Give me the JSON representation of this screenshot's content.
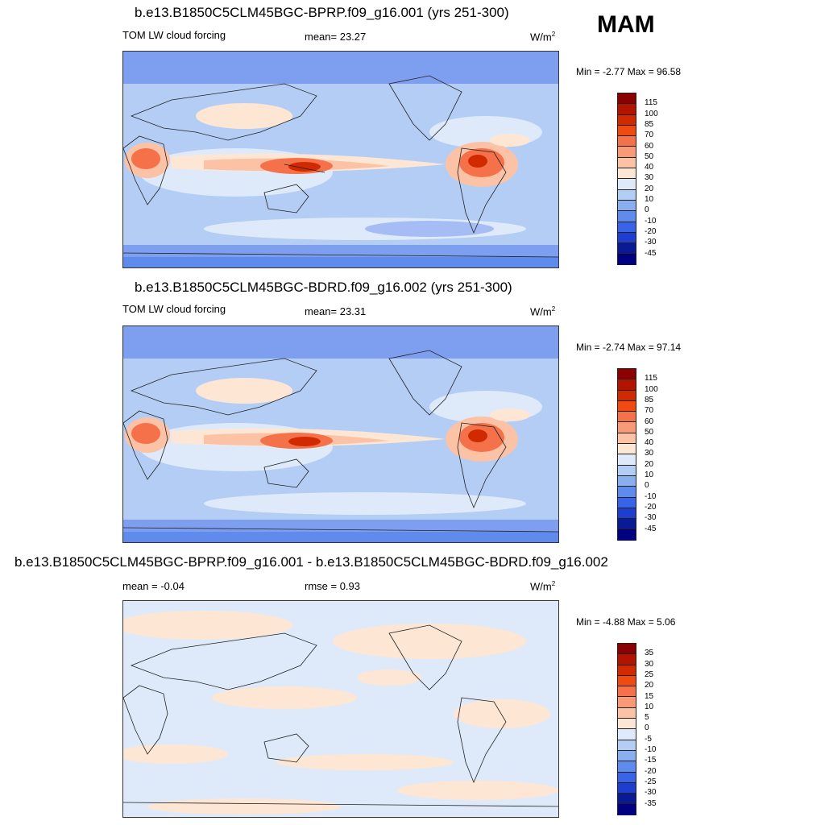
{
  "season": "MAM",
  "units_base": "W/m",
  "units_exp": "2",
  "panels": [
    {
      "title": "b.e13.B1850C5CLM45BGC-BPRP.f09_g16.001 (yrs 251-300)",
      "left_label": "TOM LW cloud forcing",
      "center_label": "mean=  23.27",
      "minmax": "Min =  -2.77 Max =  96.58",
      "ticks": [
        "115",
        "100",
        "85",
        "70",
        "60",
        "50",
        "40",
        "30",
        "20",
        "10",
        "0",
        "-10",
        "-20",
        "-30",
        "-45"
      ]
    },
    {
      "title": "b.e13.B1850C5CLM45BGC-BDRD.f09_g16.002 (yrs 251-300)",
      "left_label": "TOM LW cloud forcing",
      "center_label": "mean=  23.31",
      "minmax": "Min =  -2.74 Max =  97.14",
      "ticks": [
        "115",
        "100",
        "85",
        "70",
        "60",
        "50",
        "40",
        "30",
        "20",
        "10",
        "0",
        "-10",
        "-20",
        "-30",
        "-45"
      ]
    },
    {
      "title": "b.e13.B1850C5CLM45BGC-BPRP.f09_g16.001 - b.e13.B1850C5CLM45BGC-BDRD.f09_g16.002",
      "left_label": "mean =  -0.04",
      "center_label": "rmse =   0.93",
      "minmax": "Min =  -4.88 Max =   5.06",
      "ticks": [
        "35",
        "30",
        "25",
        "20",
        "15",
        "10",
        "5",
        "0",
        "-5",
        "-10",
        "-15",
        "-20",
        "-25",
        "-30",
        "-35"
      ]
    }
  ],
  "colorbar_colors": [
    "#8b0000",
    "#b21400",
    "#d22a00",
    "#ee4a12",
    "#f4714a",
    "#f89a78",
    "#fbc2a6",
    "#fde6d4",
    "#deeafa",
    "#b4cdf5",
    "#8aaff0",
    "#5f8cec",
    "#3a64e8",
    "#1d3ecf",
    "#0a1a94",
    "#000080"
  ],
  "map_colors": {
    "ocean_low": "#7e9ef0",
    "ocean_mid": "#b4cdf5",
    "light": "#deeafa",
    "warm1": "#fde6d4",
    "warm2": "#fbc2a6",
    "warm3": "#f4714a",
    "hot": "#d22a00",
    "diff_bg": "#deeafa",
    "diff_warm": "#fde6d4"
  }
}
